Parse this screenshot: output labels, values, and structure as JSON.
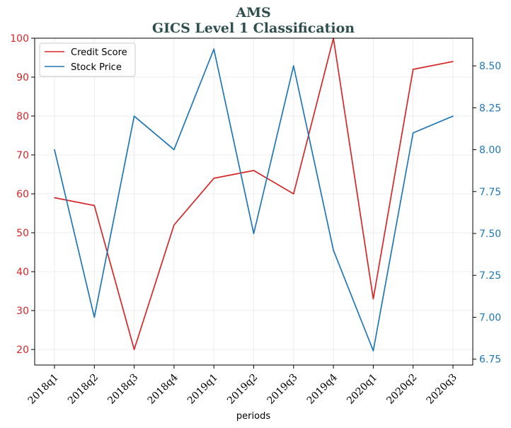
{
  "chart_data": {
    "type": "line",
    "title": "AMS",
    "subtitle": "GICS Level 1 Classification",
    "xlabel": "periods",
    "categories": [
      "2018q1",
      "2018q2",
      "2018q3",
      "2018q4",
      "2019q1",
      "2019q2",
      "2019q3",
      "2019q4",
      "2020q1",
      "2020q2",
      "2020q3"
    ],
    "series": [
      {
        "name": "Credit Score",
        "axis": "left",
        "color": "#d62728",
        "values": [
          59,
          57,
          20,
          52,
          64,
          66,
          60,
          100,
          33,
          92,
          94
        ]
      },
      {
        "name": "Stock Price",
        "axis": "right",
        "color": "#1f77b4",
        "values": [
          8.0,
          7.0,
          8.2,
          8.0,
          8.6,
          7.5,
          8.5,
          7.4,
          6.8,
          8.1,
          8.2
        ]
      }
    ],
    "y_left": {
      "ylim": [
        16,
        100
      ],
      "ticks": [
        20,
        30,
        40,
        50,
        60,
        70,
        80,
        90,
        100
      ],
      "color": "#d62728"
    },
    "y_right": {
      "ylim": [
        6.715,
        8.665
      ],
      "ticks": [
        "6.75",
        "7.00",
        "7.25",
        "7.50",
        "7.75",
        "8.00",
        "8.25",
        "8.50"
      ],
      "color": "#1f77b4"
    },
    "grid": true,
    "legend_position": "top-left"
  }
}
